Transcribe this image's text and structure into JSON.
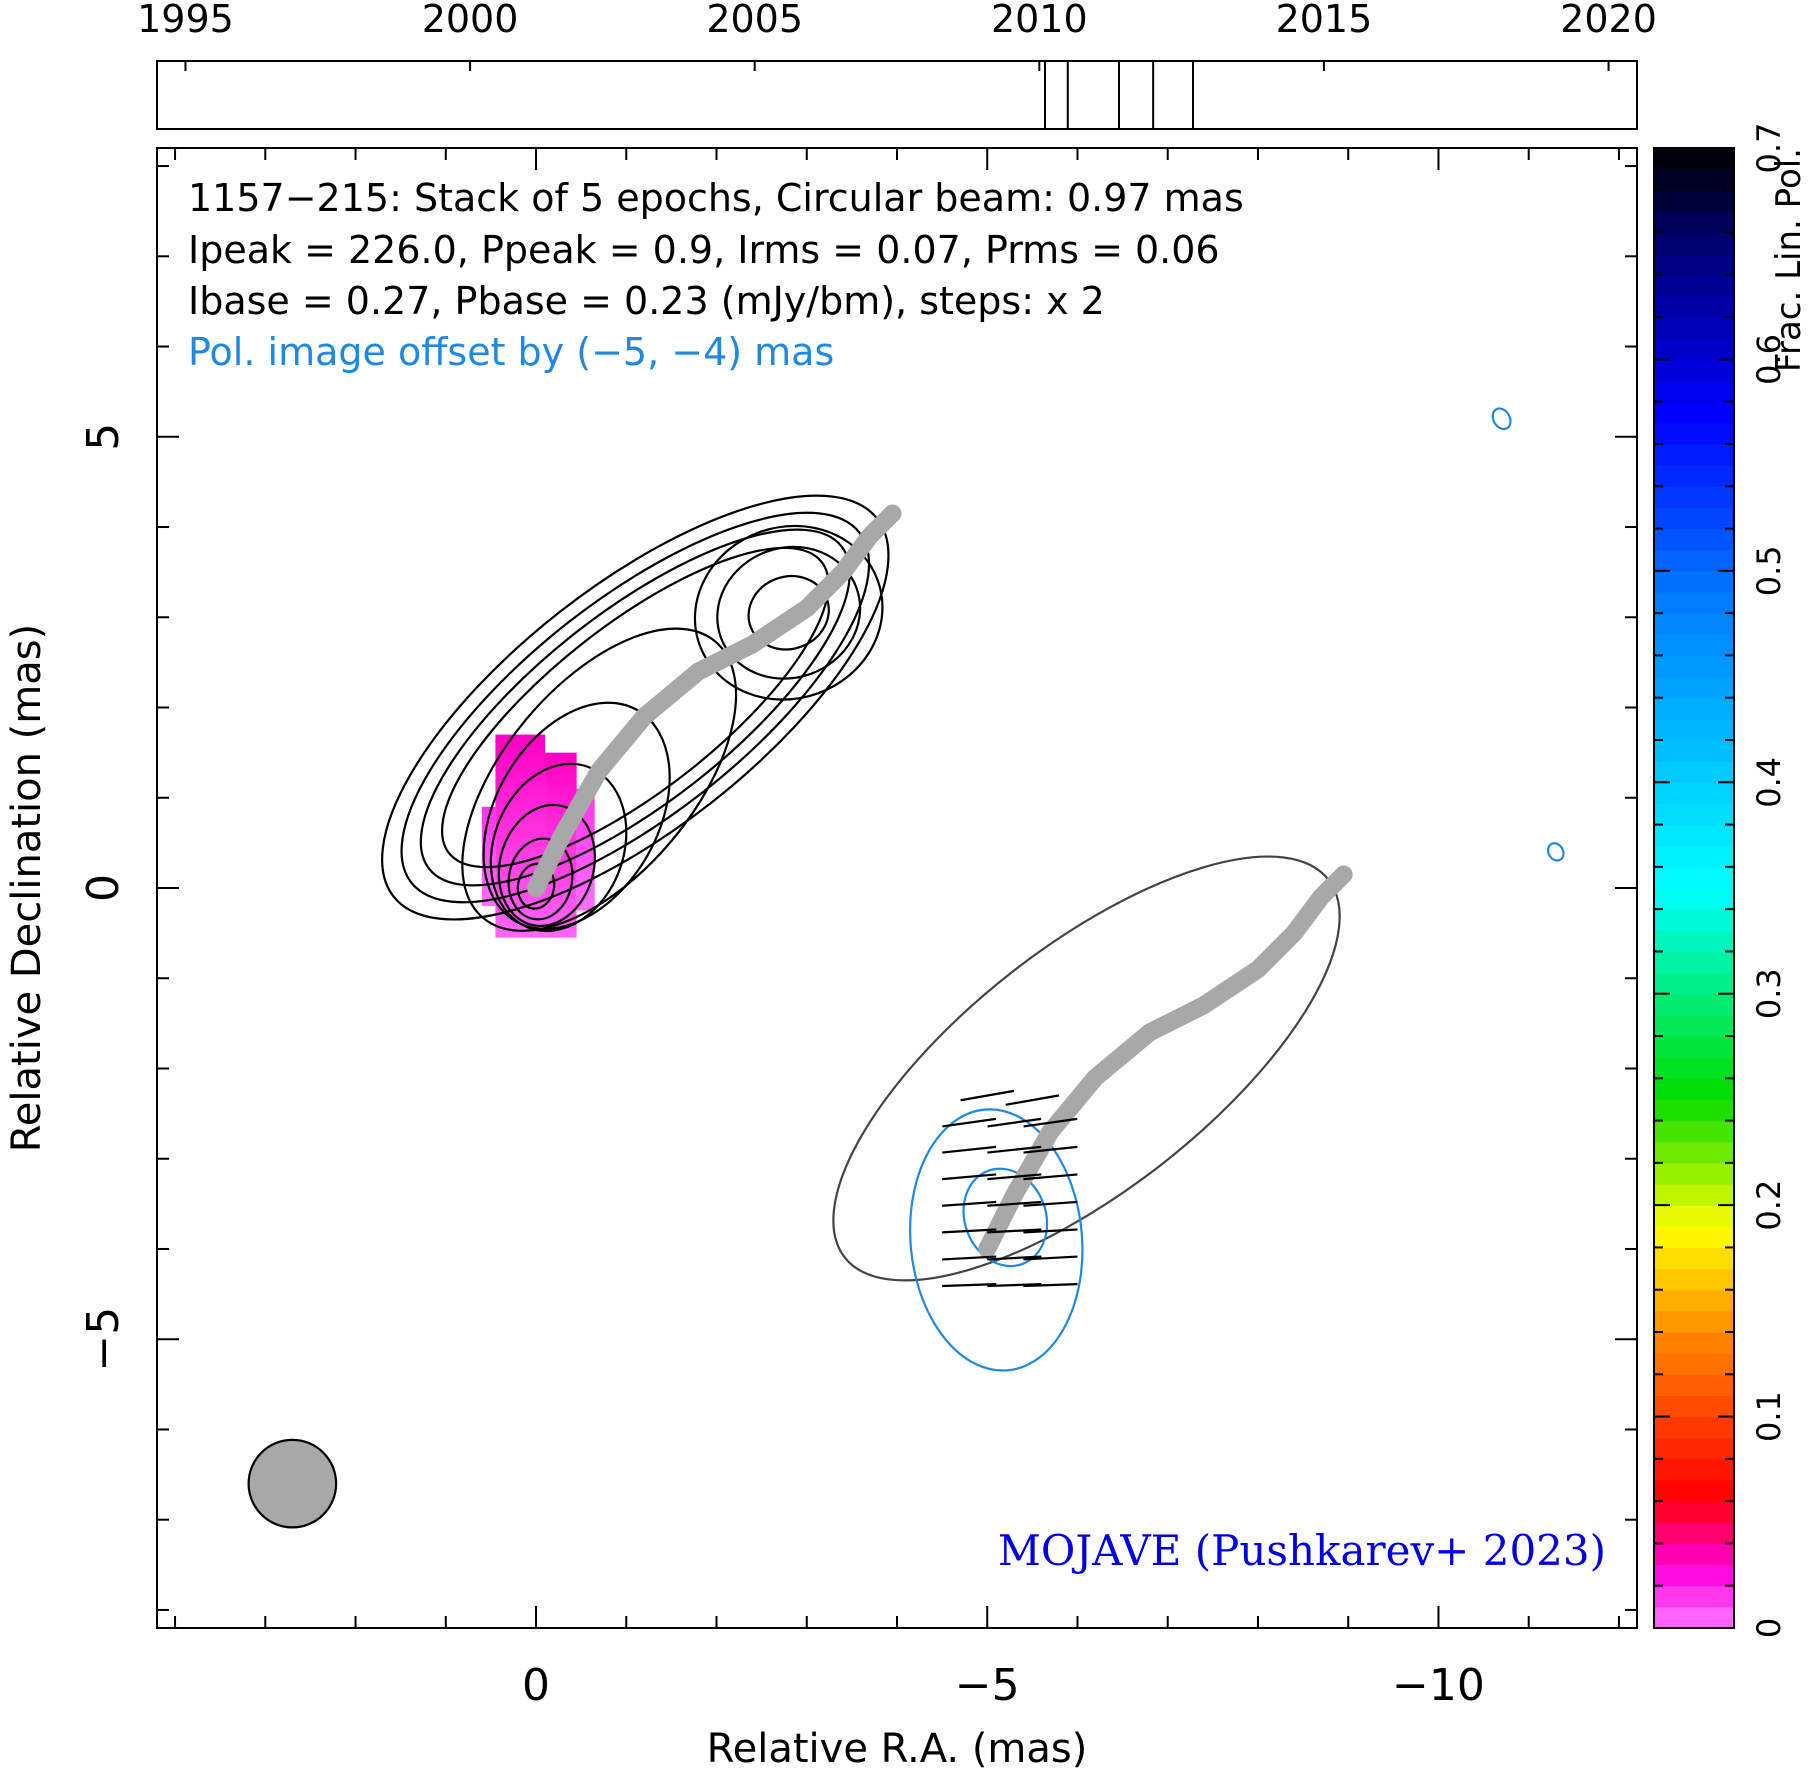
{
  "chart_data": {
    "type": "contour",
    "title_lines": [
      "1157−215: Stack of 5 epochs, Circular beam: 0.97 mas",
      "Ipeak = 226.0, Ppeak = 0.9, Irms = 0.07, Prms = 0.06",
      "Ibase = 0.27, Pbase = 0.23 (mJy/bm), steps: x 2"
    ],
    "offset_note": "Pol. image offset by (−5, −4) mas",
    "credit": "MOJAVE (Pushkarev+ 2023)",
    "xlabel": "Relative R.A. (mas)",
    "ylabel": "Relative Declination (mas)",
    "xlim": [
      4.2,
      -12.2
    ],
    "ylim": [
      -8.2,
      8.2
    ],
    "x_ticks": [
      {
        "value": 0,
        "label": "0"
      },
      {
        "value": -5,
        "label": "−5"
      },
      {
        "value": -10,
        "label": "−10"
      }
    ],
    "y_ticks": [
      {
        "value": 5,
        "label": "5"
      },
      {
        "value": 0,
        "label": "0"
      },
      {
        "value": -5,
        "label": "−5"
      }
    ],
    "timeline": {
      "range": [
        1994.5,
        2020.5
      ],
      "tick_labels": [
        "1995",
        "2000",
        "2005",
        "2010",
        "2015",
        "2020"
      ],
      "tick_values": [
        1995,
        2000,
        2005,
        2010,
        2015,
        2020
      ],
      "epochs": [
        2010.1,
        2010.5,
        2011.4,
        2012.0,
        2012.7
      ]
    },
    "colorbar": {
      "label": "Frac. Lin. Pol.",
      "range": [
        0,
        0.7
      ],
      "tick_labels": [
        "0",
        "0.1",
        "0.2",
        "0.3",
        "0.4",
        "0.5",
        "0.6",
        "0.7"
      ],
      "tick_values": [
        0,
        0.1,
        0.2,
        0.3,
        0.4,
        0.5,
        0.6,
        0.7
      ]
    },
    "beam": {
      "diameter_mas": 0.97,
      "center": [
        2.7,
        -6.6
      ]
    },
    "ridge_line": [
      [
        0,
        0
      ],
      [
        -0.3,
        0.6
      ],
      [
        -0.7,
        1.3
      ],
      [
        -1.2,
        1.9
      ],
      [
        -1.8,
        2.4
      ],
      [
        -2.4,
        2.7
      ],
      [
        -3.0,
        3.1
      ],
      [
        -3.4,
        3.5
      ],
      [
        -3.7,
        3.9
      ],
      [
        -3.95,
        4.15
      ]
    ],
    "pol_offset": [
      -5,
      -4
    ],
    "stokes_i_contours": [
      {
        "level": 0.27,
        "center": [
          -1.1,
          2.0
        ],
        "rx": 3.4,
        "ry": 1.35,
        "angle": 38
      },
      {
        "level": 0.54,
        "center": [
          -1.1,
          2.0
        ],
        "rx": 3.15,
        "ry": 1.2,
        "angle": 38
      },
      {
        "level": 1.08,
        "center": [
          -1.1,
          2.0
        ],
        "rx": 2.9,
        "ry": 1.06,
        "angle": 38
      },
      {
        "level": 2.16,
        "center": [
          -1.1,
          2.0
        ],
        "rx": 2.62,
        "ry": 0.92,
        "angle": 38
      },
      {
        "level": 4.32,
        "center": [
          -0.7,
          1.2
        ],
        "rx": 2.0,
        "ry": 1.05,
        "angle": 50
      },
      {
        "level": 8.64,
        "center": [
          -0.45,
          0.8
        ],
        "rx": 1.35,
        "ry": 0.9,
        "angle": 60
      },
      {
        "level": 17.3,
        "center": [
          -0.25,
          0.45
        ],
        "rx": 0.95,
        "ry": 0.72,
        "angle": 70
      },
      {
        "level": 34.6,
        "center": [
          -0.12,
          0.25
        ],
        "rx": 0.68,
        "ry": 0.52,
        "angle": 75
      },
      {
        "level": 69.1,
        "center": [
          -0.05,
          0.1
        ],
        "rx": 0.45,
        "ry": 0.35,
        "angle": 80
      },
      {
        "level": 138.0,
        "center": [
          0,
          0.02
        ],
        "rx": 0.25,
        "ry": 0.2,
        "angle": 80
      },
      {
        "level": 4.32,
        "center": [
          -2.8,
          3.05
        ],
        "rx": 1.05,
        "ry": 0.95,
        "angle": 20
      },
      {
        "level": 8.64,
        "center": [
          -2.8,
          3.05
        ],
        "rx": 0.8,
        "ry": 0.72,
        "angle": 20
      },
      {
        "level": 17.3,
        "center": [
          -2.8,
          3.05
        ],
        "rx": 0.45,
        "ry": 0.4,
        "angle": 20
      }
    ],
    "frac_pol_pixels": [
      {
        "x0": -0.1,
        "x1": 0.45,
        "y0": -0.55,
        "y1": 1.7,
        "value": 0.02
      },
      {
        "x0": -0.45,
        "x1": -0.1,
        "y0": -0.55,
        "y1": 1.5,
        "value": 0.02
      },
      {
        "x0": -0.65,
        "x1": -0.45,
        "y0": -0.25,
        "y1": 1.1,
        "value": 0.01
      },
      {
        "x0": 0.45,
        "x1": 0.6,
        "y0": -0.2,
        "y1": 0.9,
        "value": 0.01
      }
    ],
    "pol_contours": [
      {
        "center": [
          -5.1,
          -3.9
        ],
        "rx": 0.95,
        "ry": 1.45,
        "angle": 5
      },
      {
        "center": [
          -5.2,
          -3.65
        ],
        "rx": 0.45,
        "ry": 0.55,
        "angle": 20
      },
      {
        "center": [
          -10.7,
          5.2
        ],
        "rx": 0.09,
        "ry": 0.12,
        "angle": 30
      },
      {
        "center": [
          -11.3,
          0.4
        ],
        "rx": 0.08,
        "ry": 0.1,
        "angle": 30
      }
    ],
    "evpa_ticks": [
      {
        "x": -5.0,
        "y": -2.3,
        "angle": -10
      },
      {
        "x": -5.5,
        "y": -2.35,
        "angle": -10
      },
      {
        "x": -4.8,
        "y": -2.6,
        "angle": -8
      },
      {
        "x": -5.3,
        "y": -2.6,
        "angle": -8
      },
      {
        "x": -5.7,
        "y": -2.6,
        "angle": -8
      },
      {
        "x": -4.8,
        "y": -2.9,
        "angle": -6
      },
      {
        "x": -5.3,
        "y": -2.9,
        "angle": -6
      },
      {
        "x": -5.7,
        "y": -2.9,
        "angle": -6
      },
      {
        "x": -4.8,
        "y": -3.2,
        "angle": -5
      },
      {
        "x": -5.3,
        "y": -3.2,
        "angle": -5
      },
      {
        "x": -5.7,
        "y": -3.2,
        "angle": -5
      },
      {
        "x": -4.8,
        "y": -3.5,
        "angle": -4
      },
      {
        "x": -5.3,
        "y": -3.5,
        "angle": -4
      },
      {
        "x": -5.7,
        "y": -3.5,
        "angle": -4
      },
      {
        "x": -4.8,
        "y": -3.8,
        "angle": -3
      },
      {
        "x": -5.3,
        "y": -3.8,
        "angle": -3
      },
      {
        "x": -5.7,
        "y": -3.8,
        "angle": -3
      },
      {
        "x": -4.8,
        "y": -4.1,
        "angle": -3
      },
      {
        "x": -5.3,
        "y": -4.1,
        "angle": -3
      },
      {
        "x": -5.7,
        "y": -4.1,
        "angle": -3
      },
      {
        "x": -4.8,
        "y": -4.4,
        "angle": -2
      },
      {
        "x": -5.3,
        "y": -4.4,
        "angle": -2
      },
      {
        "x": -5.7,
        "y": -4.4,
        "angle": -2
      }
    ]
  }
}
